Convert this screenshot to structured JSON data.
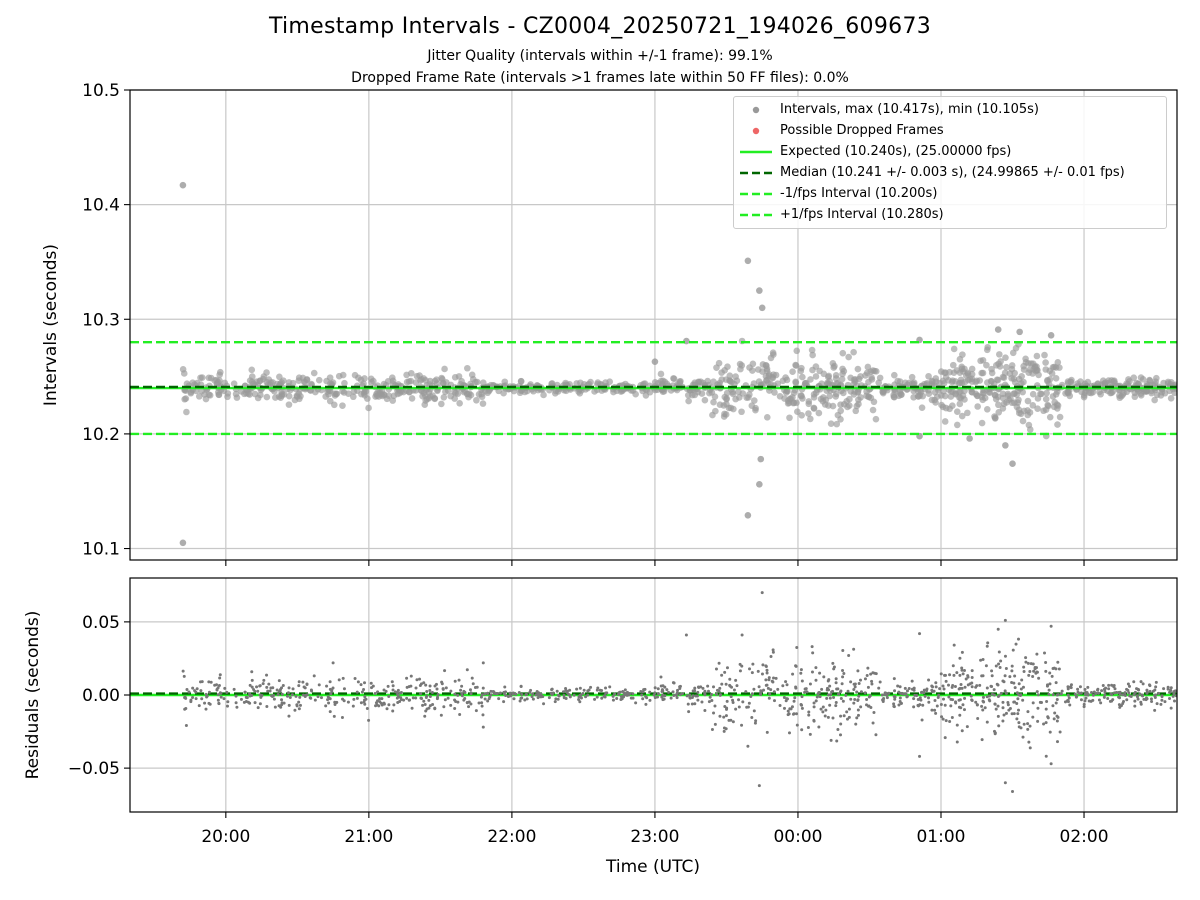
{
  "title": "Timestamp Intervals - CZ0004_20250721_194026_609673",
  "subtitle_1": "Jitter Quality (intervals within +/-1 frame): 99.1%",
  "subtitle_2": "Dropped Frame Rate (intervals >1 frames late within 50 FF files): 0.0%",
  "chart_data": [
    {
      "type": "scatter",
      "panel": "intervals",
      "xlabel": "",
      "ylabel": "Intervals (seconds)",
      "ylim": [
        10.09,
        10.5
      ],
      "yticks": [
        10.1,
        10.2,
        10.3,
        10.4,
        10.5
      ],
      "ytick_labels": [
        "10.1",
        "10.2",
        "10.3",
        "10.4",
        "10.5"
      ],
      "xlim_hours": [
        19.33,
        26.65
      ],
      "xticks_hours": [
        20,
        21,
        22,
        23,
        24,
        25,
        26
      ],
      "xtick_labels": [
        "20:00",
        "21:00",
        "22:00",
        "23:00",
        "00:00",
        "01:00",
        "02:00"
      ],
      "grid": true,
      "legend_position": "top-right",
      "series": [
        {
          "name": "Intervals, max (10.417s), min (10.105s)",
          "kind": "points",
          "color": "#999999"
        },
        {
          "name": "Possible Dropped Frames",
          "kind": "points",
          "color": "#ee6666",
          "values": []
        }
      ],
      "lines": [
        {
          "name": "Expected (10.240s), (25.00000 fps)",
          "y": 10.24,
          "color": "#22ee22",
          "style": "solid"
        },
        {
          "name": "Median (10.241 +/- 0.003 s), (24.99865 +/- 0.01 fps)",
          "y": 10.241,
          "color": "#006600",
          "style": "dashed"
        },
        {
          "name": "-1/fps Interval (10.200s)",
          "y": 10.2,
          "color": "#22ee22",
          "style": "dashed"
        },
        {
          "name": "+1/fps Interval (10.280s)",
          "y": 10.28,
          "color": "#22ee22",
          "style": "dashed"
        }
      ],
      "scatter_profile": [
        {
          "from": 19.7,
          "to": 21.85,
          "spread": 0.006,
          "n": 340
        },
        {
          "from": 21.85,
          "to": 23.0,
          "spread": 0.0025,
          "n": 150
        },
        {
          "from": 23.0,
          "to": 23.4,
          "spread": 0.004,
          "n": 70
        },
        {
          "from": 23.4,
          "to": 24.55,
          "spread": 0.013,
          "n": 260
        },
        {
          "from": 24.55,
          "to": 25.0,
          "spread": 0.006,
          "n": 80
        },
        {
          "from": 25.0,
          "to": 25.85,
          "spread": 0.016,
          "n": 240
        },
        {
          "from": 25.85,
          "to": 26.65,
          "spread": 0.004,
          "n": 150
        }
      ],
      "outliers": [
        [
          19.7,
          10.417
        ],
        [
          19.7,
          10.105
        ],
        [
          23.65,
          10.351
        ],
        [
          23.73,
          10.325
        ],
        [
          23.75,
          10.31
        ],
        [
          23.74,
          10.178
        ],
        [
          23.73,
          10.156
        ],
        [
          23.65,
          10.129
        ],
        [
          23.22,
          10.281
        ],
        [
          23.0,
          10.263
        ],
        [
          25.4,
          10.291
        ],
        [
          25.55,
          10.289
        ],
        [
          25.77,
          10.286
        ],
        [
          25.5,
          10.174
        ],
        [
          25.45,
          10.19
        ],
        [
          24.85,
          10.282
        ],
        [
          24.85,
          10.198
        ],
        [
          25.2,
          10.196
        ]
      ]
    },
    {
      "type": "scatter",
      "panel": "residuals",
      "xlabel": "Time (UTC)",
      "ylabel": "Residuals (seconds)",
      "ylim": [
        -0.08,
        0.08
      ],
      "yticks": [
        -0.05,
        0.0,
        0.05
      ],
      "ytick_labels": [
        "−0.05",
        "0.00",
        "0.05"
      ],
      "xlim_hours": [
        19.33,
        26.65
      ],
      "xticks_hours": [
        20,
        21,
        22,
        23,
        24,
        25,
        26
      ],
      "xtick_labels": [
        "20:00",
        "21:00",
        "22:00",
        "23:00",
        "00:00",
        "01:00",
        "02:00"
      ],
      "grid": true,
      "series": [
        {
          "name": "",
          "kind": "points",
          "color": "#777777"
        }
      ],
      "lines": [
        {
          "name": "",
          "y": 0.0,
          "color": "#22ee22",
          "style": "solid"
        },
        {
          "name": "",
          "y": 0.001,
          "color": "#006600",
          "style": "dashed"
        }
      ],
      "outliers": [
        [
          23.75,
          0.07
        ],
        [
          23.22,
          0.041
        ],
        [
          25.45,
          0.051
        ],
        [
          25.77,
          0.047
        ],
        [
          24.85,
          0.042
        ],
        [
          25.4,
          0.045
        ],
        [
          23.73,
          -0.062
        ],
        [
          25.5,
          -0.066
        ],
        [
          25.77,
          -0.047
        ],
        [
          25.45,
          -0.06
        ],
        [
          23.65,
          -0.035
        ],
        [
          24.85,
          -0.042
        ],
        [
          20.75,
          0.022
        ],
        [
          21.8,
          -0.022
        ],
        [
          21.8,
          0.022
        ]
      ]
    }
  ],
  "legend": {
    "entries": [
      {
        "label": "Intervals, max (10.417s), min (10.105s)",
        "symbol": "dot",
        "color": "#999999"
      },
      {
        "label": "Possible Dropped Frames",
        "symbol": "dot",
        "color": "#ee6666"
      },
      {
        "label": "Expected (10.240s), (25.00000 fps)",
        "symbol": "solid",
        "color": "#22ee22"
      },
      {
        "label": "Median (10.241 +/- 0.003 s), (24.99865 +/- 0.01 fps)",
        "symbol": "dashed",
        "color": "#006600"
      },
      {
        "label": "-1/fps Interval (10.200s)",
        "symbol": "dashed",
        "color": "#22ee22"
      },
      {
        "label": "+1/fps Interval (10.280s)",
        "symbol": "dashed",
        "color": "#22ee22"
      }
    ]
  }
}
